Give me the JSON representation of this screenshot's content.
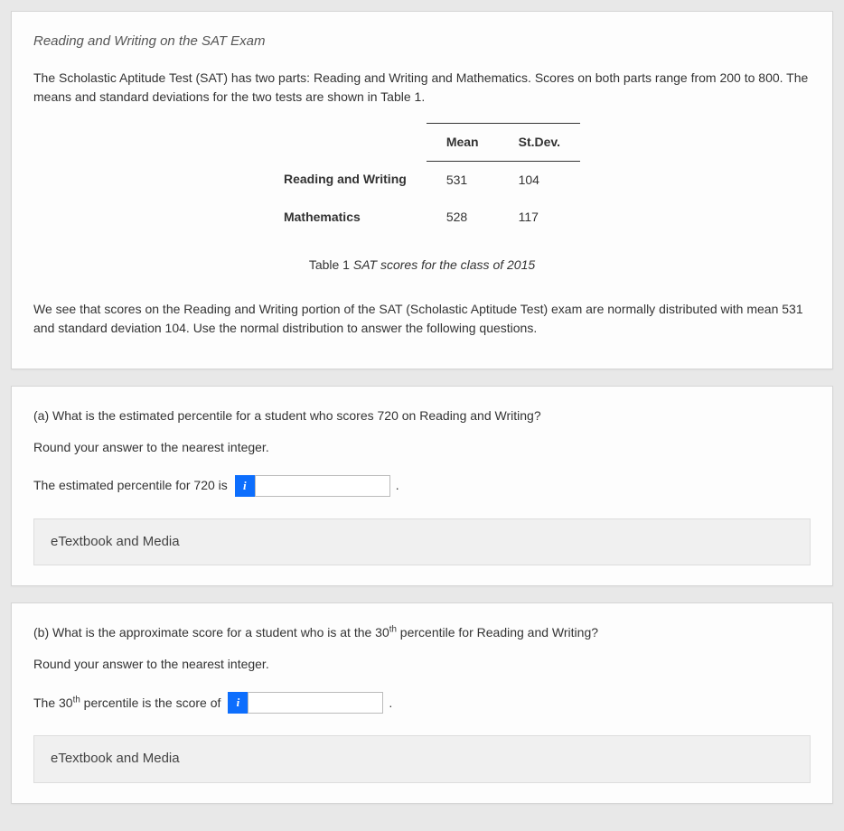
{
  "intro": {
    "title": "Reading and Writing on the SAT Exam",
    "paragraph": "The Scholastic Aptitude Test (SAT) has two parts: Reading and Writing and Mathematics. Scores on both parts range from 200 to 800. The means and standard deviations for the two tests are shown in Table 1.",
    "table": {
      "headers": [
        "",
        "Mean",
        "St.Dev."
      ],
      "rows": [
        [
          "Reading and Writing",
          "531",
          "104"
        ],
        [
          "Mathematics",
          "528",
          "117"
        ]
      ]
    },
    "caption_label": "Table 1 ",
    "caption_desc": "SAT scores for the class of 2015",
    "closing": "We see that scores on the Reading and Writing portion of the SAT (Scholastic Aptitude Test) exam are normally distributed with mean 531 and standard deviation 104. Use the normal distribution to answer the following questions."
  },
  "partA": {
    "question": "(a) What is the estimated percentile for a student who scores 720 on Reading and Writing?",
    "round": "Round your answer to the nearest integer.",
    "answer_prefix": "The estimated percentile for 720 is",
    "info_glyph": "i",
    "input_value": "",
    "period": ".",
    "etextbook": "eTextbook and Media"
  },
  "partB": {
    "question_pre": "(b) What is the approximate score for a student who is at the 30",
    "question_sup": "th",
    "question_post": " percentile for Reading and Writing?",
    "round": "Round your answer to the nearest integer.",
    "answer_prefix_pre": "The 30",
    "answer_prefix_sup": "th",
    "answer_prefix_post": " percentile is the score of",
    "info_glyph": "i",
    "input_value": "",
    "period": ".",
    "etextbook": "eTextbook and Media"
  }
}
